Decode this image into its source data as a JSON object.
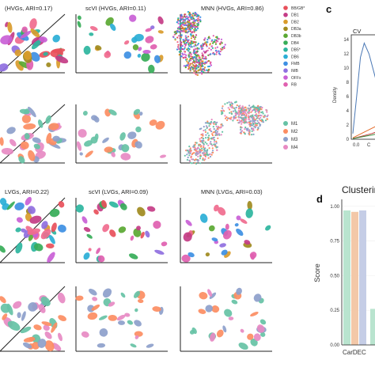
{
  "colors": {
    "celltypes": [
      "#e8505b",
      "#c43c86",
      "#d99b2b",
      "#a08a1e",
      "#5aa832",
      "#36ad58",
      "#2db59e",
      "#2aaed6",
      "#3d8fe3",
      "#8f6fe0",
      "#c95fd6",
      "#e060b0",
      "#f06b8e"
    ],
    "batches": [
      "#66c2a5",
      "#fc8d62",
      "#8da0cb",
      "#e78ac3"
    ]
  },
  "figure": {
    "row1": {
      "col1_title": "(HVGs, ARI=0.17)",
      "col2_title": "scVI (HVGs, ARI=0.11)",
      "col3_title": "MNN (HVGs, ARI=0.86)"
    },
    "row3": {
      "col1_title": "LVGs, ARI=0.22)",
      "col2_title": "scVI (LVGs, ARI=0.09)",
      "col3_title": "MNN (LVGs, ARI=0.03)"
    },
    "celltype_legend": [
      "BB/GB*",
      "DB1",
      "DB2",
      "DB3a",
      "DB3b",
      "DB4",
      "DB5*",
      "DB6",
      "FMB",
      "IMB",
      "OFFx",
      "RB"
    ],
    "batch_legend": [
      "M1",
      "M2",
      "M3",
      "M4"
    ],
    "panel_c": {
      "letter": "c",
      "title": "CV",
      "ylabel": "Density",
      "yticks": [
        "14",
        "12",
        "10",
        "8",
        "6",
        "4",
        "2",
        "0"
      ],
      "xticks": [
        "0.0",
        "C"
      ]
    },
    "panel_d": {
      "letter": "d",
      "title": "Clusterin",
      "ylabel": "Score",
      "yticks": [
        "1.00",
        "0.75",
        "0.50",
        "0.25",
        "0.00"
      ],
      "xtick": "CarDEC"
    }
  },
  "chart_data": [
    {
      "type": "line",
      "title": "CV",
      "ylabel": "Density",
      "ylim": [
        0,
        14
      ],
      "series": [
        {
          "values": [
            [
              0.0,
              0.8
            ],
            [
              0.04,
              6
            ],
            [
              0.08,
              11.5
            ],
            [
              0.12,
              13.5
            ],
            [
              0.17,
              12
            ],
            [
              0.25,
              8
            ],
            [
              0.35,
              4
            ],
            [
              0.5,
              1.5
            ],
            [
              0.7,
              0.4
            ],
            [
              1.0,
              0.1
            ]
          ]
        },
        {
          "values": [
            [
              0.0,
              0.2
            ],
            [
              0.15,
              1.2
            ],
            [
              0.3,
              2.2
            ],
            [
              0.45,
              3.0
            ],
            [
              0.6,
              3.6
            ],
            [
              1.0,
              4.0
            ]
          ]
        },
        {
          "values": [
            [
              0.0,
              0.1
            ],
            [
              0.2,
              0.8
            ],
            [
              0.4,
              1.7
            ],
            [
              0.6,
              2.6
            ],
            [
              1.0,
              3.2
            ]
          ]
        },
        {
          "values": [
            [
              0.0,
              0.1
            ],
            [
              0.2,
              0.6
            ],
            [
              0.4,
              1.2
            ],
            [
              0.6,
              1.9
            ],
            [
              1.0,
              2.4
            ]
          ]
        }
      ]
    },
    {
      "type": "bar",
      "title": "Clusterin",
      "ylabel": "Score",
      "ylim": [
        0,
        1.05
      ],
      "categories": [
        "CarDEC"
      ],
      "series": [
        {
          "values": [
            0.97
          ]
        },
        {
          "values": [
            0.96
          ]
        },
        {
          "values": [
            0.97
          ]
        },
        {
          "values": [
            0.26
          ]
        }
      ]
    }
  ]
}
